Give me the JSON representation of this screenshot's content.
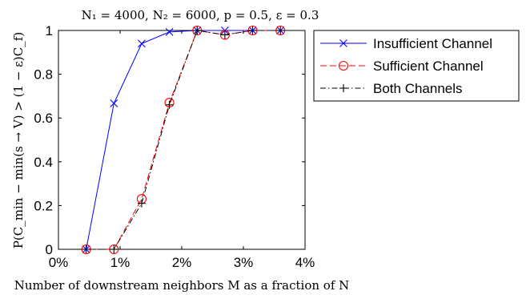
{
  "chart_data": {
    "type": "line",
    "title": "N₁ = 4000, N₂ = 6000, p = 0.5, ε = 0.3",
    "xlabel": "Number of downstream neighbors M as a fraction of N",
    "ylabel": "P(C_min − min(s → V) > (1 − ε)C_f)",
    "xlim": [
      0,
      4
    ],
    "ylim": [
      0,
      1
    ],
    "x_unit": "%",
    "x_ticks": [
      "0%",
      "1%",
      "2%",
      "3%",
      "4%"
    ],
    "y_ticks": [
      "0",
      "0.2",
      "0.4",
      "0.6",
      "0.8",
      "1"
    ],
    "grid": false,
    "legend_position": "outside-right",
    "series": [
      {
        "name": "Insufficient Channel",
        "color": "#0000ff",
        "line_style": "solid",
        "marker": "x",
        "x": [
          0.45,
          0.9,
          1.35,
          1.8,
          2.25,
          2.7,
          3.15,
          3.6
        ],
        "y": [
          0,
          0.667,
          0.94,
          0.993,
          1,
          1,
          1,
          1
        ]
      },
      {
        "name": "Sufficient Channel",
        "color": "#ff0000",
        "line_style": "dashed",
        "marker": "circle",
        "x": [
          0.45,
          0.9,
          1.35,
          1.8,
          2.25,
          2.7,
          3.15,
          3.6
        ],
        "y": [
          0,
          0,
          0.23,
          0.67,
          1,
          0.98,
          1,
          1
        ]
      },
      {
        "name": "Both Channels",
        "color": "#000000",
        "line_style": "dashdot",
        "marker": "plus",
        "x": [
          0.45,
          0.9,
          1.35,
          1.8,
          2.25,
          2.7,
          3.15,
          3.6
        ],
        "y": [
          0,
          0,
          0.21,
          0.66,
          1,
          0.98,
          1,
          1
        ]
      }
    ]
  }
}
